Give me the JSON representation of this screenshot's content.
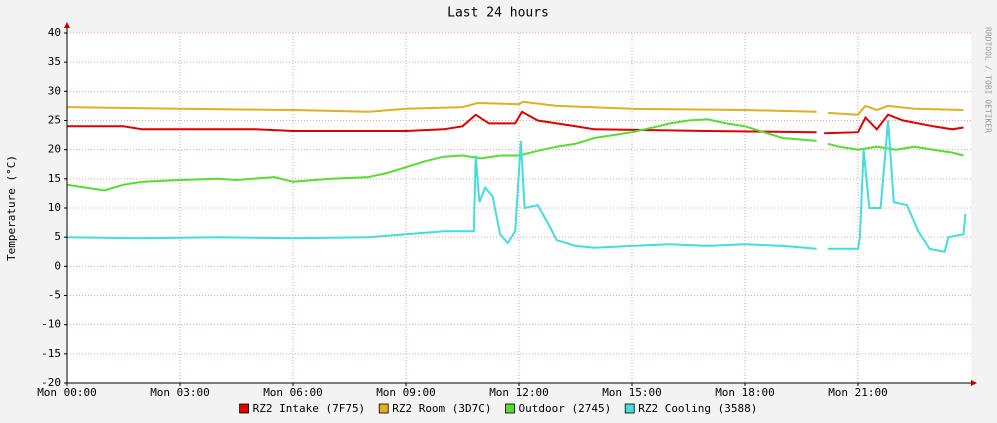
{
  "chart_data": {
    "type": "line",
    "title": "Last 24 hours",
    "y_label": "Temperature (°C)",
    "watermark": "RRDTOOL / TOBI OETIKER",
    "xlim": [
      0,
      24
    ],
    "xticks": [
      {
        "value": 0,
        "label": "Mon 00:00"
      },
      {
        "value": 3,
        "label": "Mon 03:00"
      },
      {
        "value": 6,
        "label": "Mon 06:00"
      },
      {
        "value": 9,
        "label": "Mon 09:00"
      },
      {
        "value": 12,
        "label": "Mon 12:00"
      },
      {
        "value": 15,
        "label": "Mon 15:00"
      },
      {
        "value": 18,
        "label": "Mon 18:00"
      },
      {
        "value": 21,
        "label": "Mon 21:00"
      }
    ],
    "ylim": [
      -20,
      40
    ],
    "yticks": [
      -20,
      -15,
      -10,
      -5,
      0,
      5,
      10,
      15,
      20,
      25,
      30,
      35,
      40
    ],
    "grid": true,
    "legend": "bottom",
    "series": [
      {
        "name": "RZ2 Intake (7F75)",
        "color": "#e00000",
        "x": [
          0,
          1.5,
          2,
          5,
          6,
          9,
          10,
          10.5,
          10.85,
          11.2,
          11.9,
          12.08,
          12.5,
          13.5,
          14,
          17,
          19.9,
          20,
          20.1,
          21,
          21.2,
          21.5,
          21.8,
          22.2,
          23,
          23.5,
          23.8
        ],
        "values": [
          24,
          24,
          23.5,
          23.5,
          23.2,
          23.2,
          23.5,
          24,
          26,
          24.5,
          24.5,
          26.5,
          25,
          24,
          23.5,
          23.2,
          23,
          null,
          22.8,
          23,
          25.5,
          23.5,
          26,
          25,
          24,
          23.5,
          23.8
        ]
      },
      {
        "name": "RZ2 Room (3D7C)",
        "color": "#e0b020",
        "x": [
          0,
          3,
          6,
          8,
          9,
          10.5,
          10.9,
          12,
          12.1,
          13,
          15,
          18,
          19.9,
          20,
          20.2,
          21,
          21.2,
          21.5,
          21.8,
          22.5,
          23.8
        ],
        "values": [
          27.3,
          27,
          26.8,
          26.5,
          27,
          27.3,
          28,
          27.8,
          28.2,
          27.5,
          27,
          26.8,
          26.5,
          null,
          26.3,
          26,
          27.5,
          26.8,
          27.5,
          27,
          26.8
        ]
      },
      {
        "name": "Outdoor (2745)",
        "color": "#55dd33",
        "x": [
          0,
          0.5,
          1,
          1.5,
          2,
          3,
          4,
          4.5,
          5.5,
          6,
          7,
          8,
          8.5,
          9,
          9.5,
          10,
          10.5,
          11,
          11.5,
          12,
          12.5,
          13,
          13.5,
          14,
          14.5,
          15,
          15.7,
          16,
          16.5,
          17,
          17.5,
          18,
          18.5,
          19,
          19.9,
          20,
          20.2,
          20.5,
          21,
          21.5,
          22,
          22.5,
          23,
          23.5,
          23.8
        ],
        "values": [
          14,
          13.5,
          13,
          14,
          14.5,
          14.8,
          15,
          14.8,
          15.3,
          14.5,
          15,
          15.3,
          16,
          17,
          18,
          18.8,
          19,
          18.5,
          19,
          19,
          19.8,
          20.5,
          21,
          22,
          22.5,
          23,
          24,
          24.5,
          25,
          25.2,
          24.5,
          24,
          23,
          22,
          21.5,
          null,
          21,
          20.5,
          20,
          20.5,
          20,
          20.5,
          20,
          19.5,
          19
        ]
      },
      {
        "name": "RZ2 Cooling (3588)",
        "color": "#44dddd",
        "x": [
          0,
          2,
          4,
          6,
          8,
          9,
          10,
          10.8,
          10.85,
          10.95,
          11.1,
          11.3,
          11.5,
          11.7,
          11.9,
          12.05,
          12.15,
          12.5,
          12.8,
          13,
          13.5,
          14,
          15,
          16,
          17,
          18,
          19,
          19.9,
          20,
          20.2,
          21,
          21.05,
          21.15,
          21.3,
          21.6,
          21.8,
          21.95,
          22.3,
          22.6,
          22.9,
          23.3,
          23.4,
          23.8,
          23.85
        ],
        "values": [
          5,
          4.8,
          5,
          4.8,
          5,
          5.5,
          6,
          6,
          19,
          11,
          13.5,
          12,
          5.5,
          4,
          6,
          21.5,
          10,
          10.5,
          7,
          4.5,
          3.5,
          3.2,
          3.5,
          3.8,
          3.5,
          3.8,
          3.5,
          3,
          null,
          3,
          3,
          5,
          20,
          10,
          10,
          25,
          11,
          10.5,
          6,
          3,
          2.5,
          5,
          5.5,
          9
        ]
      }
    ]
  }
}
